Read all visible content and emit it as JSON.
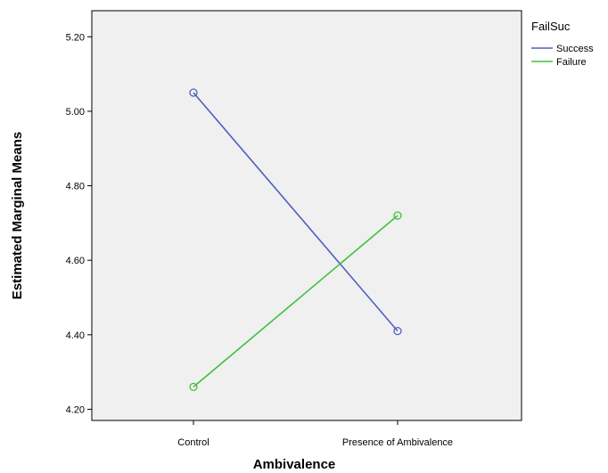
{
  "chart_data": {
    "type": "line",
    "title": "",
    "xlabel": "Ambivalence",
    "ylabel": "Estimated Marginal Means",
    "categories": [
      "Control",
      "Presence of Ambivalence"
    ],
    "y_ticks": [
      "4.20",
      "4.40",
      "4.60",
      "4.80",
      "5.00",
      "5.20"
    ],
    "ylim": [
      4.17,
      5.27
    ],
    "grid": false,
    "legend_title": "FailSuc",
    "legend_position": "top-right",
    "series": [
      {
        "name": "Success",
        "color": "#4f5fc0",
        "values": [
          5.05,
          4.41
        ]
      },
      {
        "name": "Failure",
        "color": "#3ec03e",
        "values": [
          4.26,
          4.72
        ]
      }
    ]
  }
}
